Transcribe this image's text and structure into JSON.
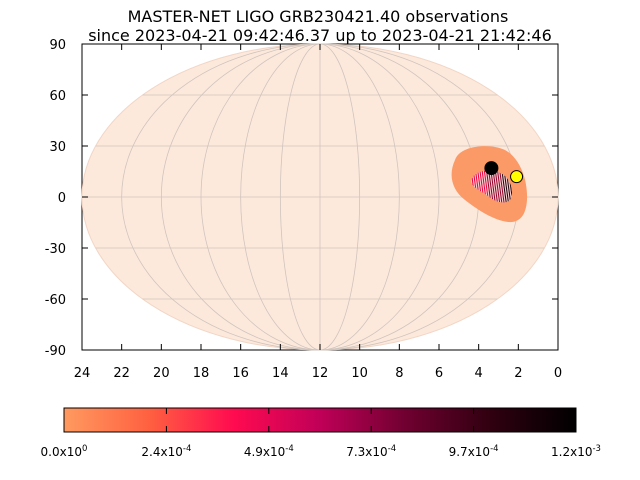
{
  "title_line1": "MASTER-NET LIGO GRB230421.40 observations",
  "title_line2": "since 2023-04-21 09:42:46.37 up to 2023-04-21 21:42:46",
  "colors": {
    "background_sky": "#fde9dc",
    "grid": "#cfc4bd",
    "region_outer": "#fb9a66",
    "region_inner": "#e8003d",
    "sun_marker": "#ffff00",
    "other_marker": "#000000"
  },
  "chart_data": {
    "type": "heatmap",
    "projection": "mollweide",
    "x_axis": {
      "label": "",
      "ticks": [
        "24",
        "22",
        "20",
        "18",
        "16",
        "14",
        "12",
        "10",
        "8",
        "6",
        "4",
        "2",
        "0"
      ],
      "range": [
        24,
        0
      ]
    },
    "y_axis": {
      "label": "",
      "ticks": [
        "90",
        "60",
        "30",
        "0",
        "-30",
        "-60",
        "-90"
      ],
      "range": [
        -90,
        90
      ]
    },
    "grid": true,
    "markers": [
      {
        "name": "black-point",
        "ra_hours": 3.2,
        "dec_deg": 17,
        "color": "#000000"
      },
      {
        "name": "yellow-point",
        "ra_hours": 2.0,
        "dec_deg": 12,
        "color": "#ffff00"
      }
    ],
    "region": {
      "ra_center_hours": 3.4,
      "dec_center_deg": 8
    },
    "colorbar": {
      "min": 0,
      "max": 0.0012,
      "labels": [
        {
          "mant": "0.0x10",
          "exp": "0"
        },
        {
          "mant": "2.4x10",
          "exp": "-4"
        },
        {
          "mant": "4.9x10",
          "exp": "-4"
        },
        {
          "mant": "7.3x10",
          "exp": "-4"
        },
        {
          "mant": "9.7x10",
          "exp": "-4"
        },
        {
          "mant": "1.2x10",
          "exp": "-3"
        }
      ],
      "stops": [
        "#ff9a60",
        "#ff6040",
        "#ff0a50",
        "#c00058",
        "#700030",
        "#300010",
        "#000000"
      ]
    }
  }
}
